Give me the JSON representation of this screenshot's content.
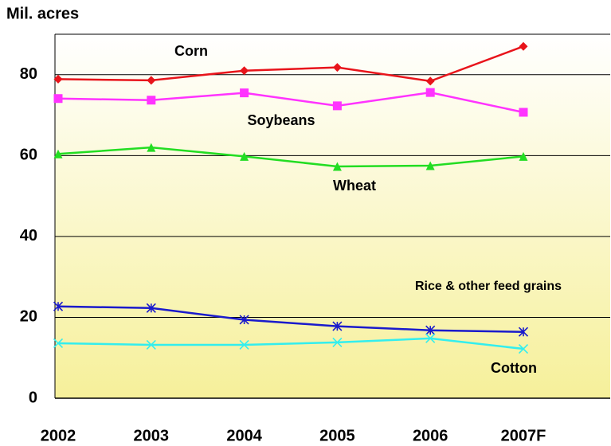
{
  "chart_data": {
    "type": "line",
    "y_label": "Mil. acres",
    "categories": [
      "2002",
      "2003",
      "2004",
      "2005",
      "2006",
      "2007F"
    ],
    "ylim": [
      0,
      90
    ],
    "yticks": [
      0,
      20,
      40,
      60,
      80
    ],
    "grid": true,
    "series": [
      {
        "name": "Corn",
        "color": "#e8141b",
        "marker": "diamond",
        "values": [
          78.9,
          78.6,
          81.0,
          81.8,
          78.4,
          87.0
        ]
      },
      {
        "name": "Soybeans",
        "color": "#ff33ff",
        "marker": "square",
        "values": [
          74.1,
          73.7,
          75.5,
          72.3,
          75.6,
          70.7
        ]
      },
      {
        "name": "Wheat",
        "color": "#22dd22",
        "marker": "triangle",
        "values": [
          60.4,
          62.0,
          59.8,
          57.3,
          57.5,
          59.8
        ]
      },
      {
        "name": "Rice & other feed grains",
        "color": "#1a1acc",
        "marker": "asterisk",
        "values": [
          22.7,
          22.3,
          19.4,
          17.8,
          16.8,
          16.4
        ]
      },
      {
        "name": "Cotton",
        "color": "#33eeee",
        "marker": "cross",
        "values": [
          13.6,
          13.2,
          13.2,
          13.8,
          14.8,
          12.2
        ]
      }
    ]
  }
}
